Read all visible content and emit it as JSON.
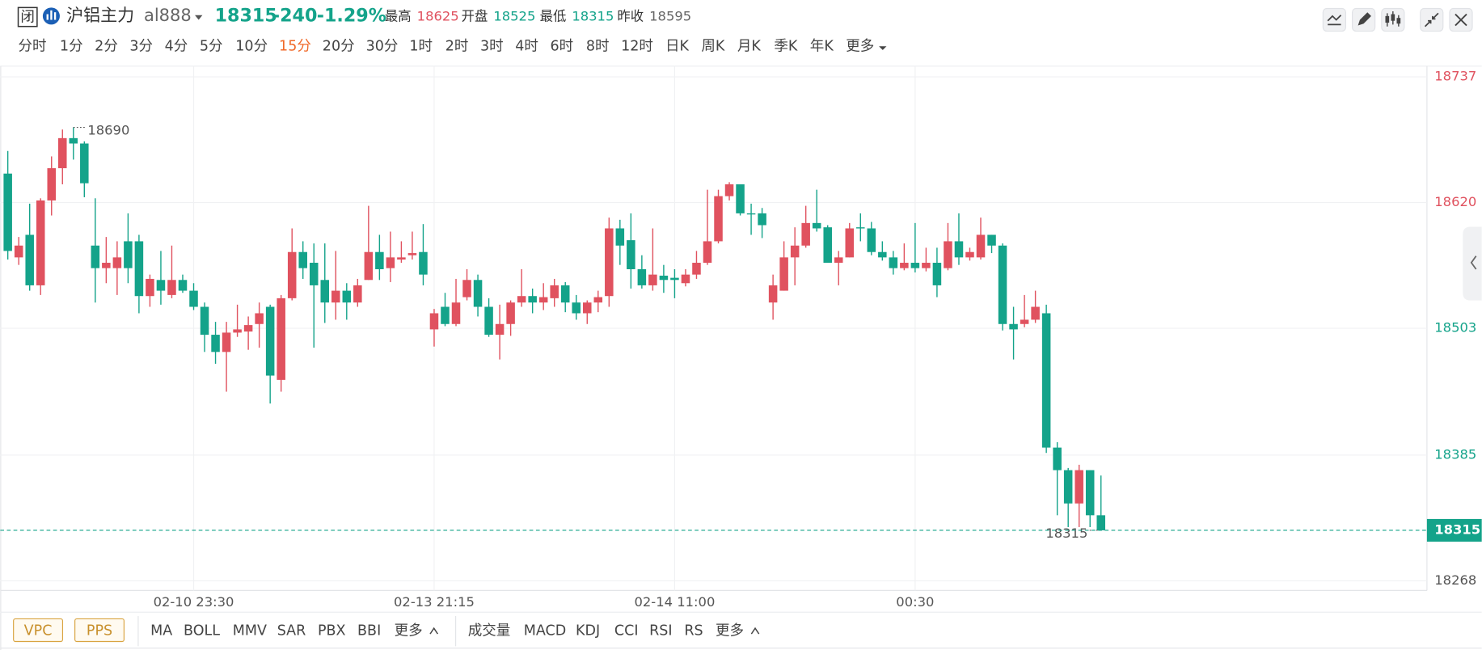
{
  "header": {
    "badge": "闭",
    "name": "沪铝主力",
    "code": "al888",
    "price": "18315",
    "change": "-240",
    "change_pct": "-1.29%",
    "quote_color": "#14a38a",
    "stats": [
      {
        "label": "最高",
        "value": "18625",
        "color": "#e0525f"
      },
      {
        "label": "开盘",
        "value": "18525",
        "color": "#14a38a"
      },
      {
        "label": "最低",
        "value": "18315",
        "color": "#14a38a"
      },
      {
        "label": "昨收",
        "value": "18595",
        "color": "#666666"
      }
    ]
  },
  "periods": [
    "分时",
    "1分",
    "2分",
    "3分",
    "4分",
    "5分",
    "10分",
    "15分",
    "20分",
    "30分",
    "1时",
    "2时",
    "3时",
    "4时",
    "6时",
    "8时",
    "12时",
    "日K",
    "周K",
    "月K",
    "季K",
    "年K",
    "更多"
  ],
  "active_period": "15分",
  "indicator_tabs": {
    "boxed": [
      "VPC",
      "PPS"
    ],
    "main": [
      "MA",
      "BOLL",
      "MMV",
      "SAR",
      "PBX",
      "BBI",
      "更多"
    ],
    "sub": [
      "成交量",
      "MACD",
      "KDJ",
      "CCI",
      "RSI",
      "RS",
      "更多"
    ]
  },
  "chart_data": {
    "type": "candlestick",
    "up_color": "#e0525f",
    "down_color": "#14a38a",
    "grid": true,
    "ylim": [
      18259,
      18747
    ],
    "yticks": [
      18268,
      18385,
      18503,
      18620,
      18737
    ],
    "max_annotation": 18690,
    "min_annotation": 18315,
    "last_price": 18315,
    "categories": [
      null,
      null,
      null,
      null,
      null,
      null,
      null,
      null,
      null,
      null,
      null,
      null,
      null,
      null,
      null,
      null,
      null,
      "02-10 23:30",
      null,
      null,
      null,
      null,
      null,
      null,
      null,
      null,
      null,
      null,
      null,
      null,
      null,
      null,
      null,
      null,
      null,
      null,
      null,
      null,
      null,
      "02-13 21:15",
      null,
      null,
      null,
      null,
      null,
      null,
      null,
      null,
      null,
      null,
      null,
      null,
      null,
      null,
      null,
      null,
      null,
      null,
      null,
      null,
      null,
      "02-14 11:00",
      null,
      null,
      null,
      null,
      null,
      null,
      null,
      null,
      null,
      null,
      null,
      null,
      null,
      null,
      null,
      null,
      null,
      null,
      null,
      null,
      null,
      "00:30",
      null,
      null,
      null,
      null,
      null,
      null,
      null,
      null,
      null,
      null,
      null,
      null,
      null,
      null,
      null,
      null,
      null
    ],
    "ohlc": [
      [
        18647,
        18668,
        18567,
        18575
      ],
      [
        18569,
        18588,
        18562,
        18580
      ],
      [
        18590,
        18619,
        18538,
        18543
      ],
      [
        18543,
        18624,
        18534,
        18622
      ],
      [
        18622,
        18663,
        18608,
        18652
      ],
      [
        18652,
        18688,
        18637,
        18680
      ],
      [
        18680,
        18690,
        18660,
        18675
      ],
      [
        18675,
        18677,
        18625,
        18638
      ],
      [
        18580,
        18624,
        18527,
        18559
      ],
      [
        18559,
        18588,
        18545,
        18564
      ],
      [
        18559,
        18584,
        18534,
        18569
      ],
      [
        18584,
        18610,
        18545,
        18559
      ],
      [
        18584,
        18590,
        18517,
        18533
      ],
      [
        18533,
        18553,
        18523,
        18549
      ],
      [
        18548,
        18575,
        18525,
        18538
      ],
      [
        18534,
        18580,
        18531,
        18548
      ],
      [
        18548,
        18553,
        18536,
        18538
      ],
      [
        18538,
        18545,
        18520,
        18523
      ],
      [
        18523,
        18527,
        18481,
        18497
      ],
      [
        18497,
        18509,
        18470,
        18481
      ],
      [
        18481,
        18509,
        18444,
        18499
      ],
      [
        18499,
        18525,
        18495,
        18502
      ],
      [
        18500,
        18514,
        18483,
        18506
      ],
      [
        18507,
        18527,
        18485,
        18517
      ],
      [
        18523,
        18525,
        18433,
        18459
      ],
      [
        18455,
        18534,
        18444,
        18531
      ],
      [
        18531,
        18596,
        18529,
        18574
      ],
      [
        18574,
        18584,
        18549,
        18559
      ],
      [
        18564,
        18582,
        18485,
        18543
      ],
      [
        18548,
        18582,
        18508,
        18527
      ],
      [
        18527,
        18575,
        18511,
        18538
      ],
      [
        18538,
        18545,
        18511,
        18527
      ],
      [
        18527,
        18549,
        18523,
        18543
      ],
      [
        18548,
        18617,
        18548,
        18574
      ],
      [
        18574,
        18590,
        18548,
        18558
      ],
      [
        18559,
        18593,
        18546,
        18569
      ],
      [
        18567,
        18584,
        18564,
        18569
      ],
      [
        18571,
        18593,
        18567,
        18573
      ],
      [
        18574,
        18600,
        18543,
        18553
      ],
      [
        18502,
        18521,
        18486,
        18517
      ],
      [
        18523,
        18536,
        18505,
        18507
      ],
      [
        18507,
        18549,
        18505,
        18527
      ],
      [
        18532,
        18558,
        18529,
        18548
      ],
      [
        18548,
        18553,
        18514,
        18523
      ],
      [
        18523,
        18531,
        18495,
        18497
      ],
      [
        18497,
        18525,
        18474,
        18507
      ],
      [
        18507,
        18529,
        18496,
        18527
      ],
      [
        18527,
        18558,
        18523,
        18533
      ],
      [
        18533,
        18540,
        18517,
        18527
      ],
      [
        18527,
        18545,
        18520,
        18532
      ],
      [
        18531,
        18549,
        18523,
        18543
      ],
      [
        18543,
        18546,
        18518,
        18527
      ],
      [
        18527,
        18534,
        18511,
        18517
      ],
      [
        18517,
        18529,
        18507,
        18527
      ],
      [
        18527,
        18538,
        18518,
        18532
      ],
      [
        18533,
        18606,
        18523,
        18596
      ],
      [
        18596,
        18604,
        18562,
        18580
      ],
      [
        18585,
        18610,
        18540,
        18558
      ],
      [
        18558,
        18571,
        18540,
        18543
      ],
      [
        18543,
        18596,
        18538,
        18553
      ],
      [
        18552,
        18562,
        18536,
        18548
      ],
      [
        18550,
        18558,
        18531,
        18548
      ],
      [
        18545,
        18558,
        18542,
        18553
      ],
      [
        18553,
        18575,
        18549,
        18564
      ],
      [
        18564,
        18632,
        18562,
        18584
      ],
      [
        18584,
        18632,
        18582,
        18626
      ],
      [
        18626,
        18639,
        18622,
        18637
      ],
      [
        18637,
        18637,
        18608,
        18610
      ],
      [
        18610,
        18619,
        18590,
        18609
      ],
      [
        18610,
        18615,
        18587,
        18599
      ],
      [
        18527,
        18553,
        18511,
        18543
      ],
      [
        18538,
        18584,
        18538,
        18569
      ],
      [
        18569,
        18597,
        18543,
        18580
      ],
      [
        18580,
        18617,
        18578,
        18601
      ],
      [
        18601,
        18632,
        18593,
        18596
      ],
      [
        18597,
        18599,
        18564,
        18564
      ],
      [
        18564,
        18575,
        18543,
        18569
      ],
      [
        18569,
        18601,
        18569,
        18596
      ],
      [
        18597,
        18610,
        18584,
        18596
      ],
      [
        18596,
        18602,
        18571,
        18574
      ],
      [
        18574,
        18584,
        18566,
        18569
      ],
      [
        18569,
        18575,
        18553,
        18559
      ],
      [
        18559,
        18582,
        18557,
        18564
      ],
      [
        18564,
        18601,
        18555,
        18559
      ],
      [
        18559,
        18578,
        18556,
        18564
      ],
      [
        18564,
        18578,
        18532,
        18543
      ],
      [
        18559,
        18601,
        18557,
        18584
      ],
      [
        18584,
        18610,
        18562,
        18569
      ],
      [
        18569,
        18578,
        18566,
        18574
      ],
      [
        18569,
        18606,
        18567,
        18590
      ],
      [
        18590,
        18590,
        18573,
        18580
      ],
      [
        18580,
        18582,
        18501,
        18507
      ],
      [
        18507,
        18523,
        18474,
        18502
      ],
      [
        18507,
        18534,
        18504,
        18511
      ],
      [
        18511,
        18538,
        18508,
        18523
      ],
      [
        18517,
        18525,
        18387,
        18392
      ],
      [
        18392,
        18397,
        18329,
        18371
      ],
      [
        18371,
        18373,
        18318,
        18340
      ],
      [
        18340,
        18376,
        18318,
        18371
      ],
      [
        18371,
        18371,
        18318,
        18329
      ],
      [
        18329,
        18366,
        18315,
        18315
      ]
    ]
  }
}
